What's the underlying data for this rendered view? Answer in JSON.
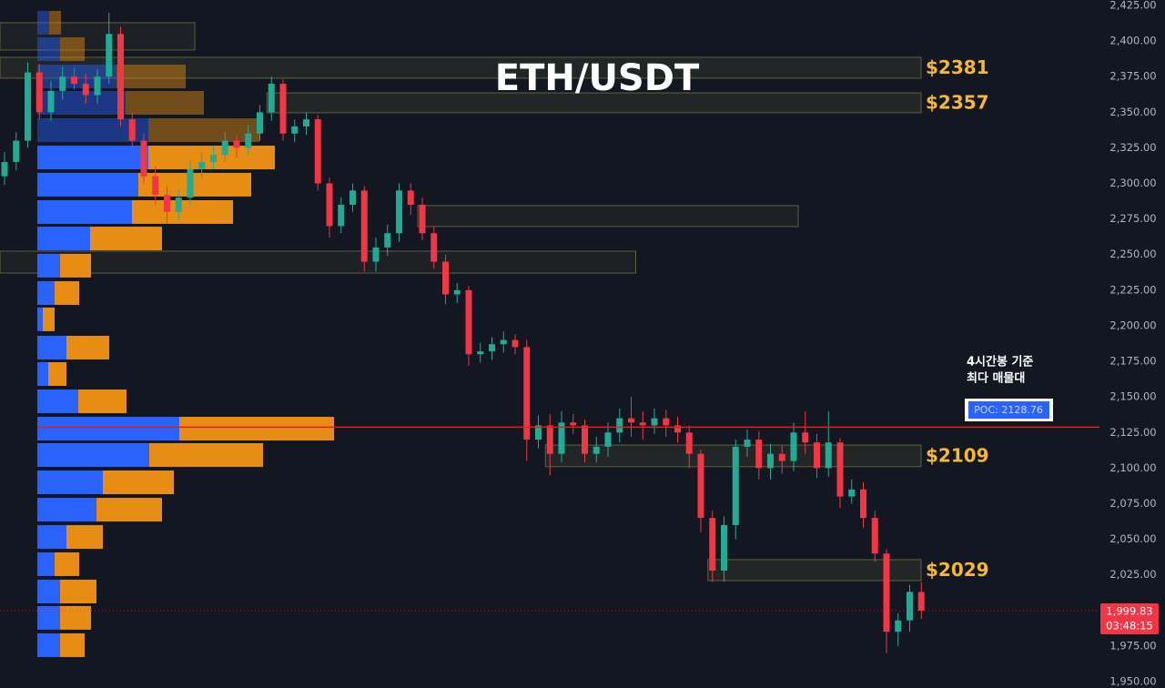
{
  "chart_data": {
    "type": "candlestick",
    "title": "ETH/USDT",
    "colors": {
      "up": "#22ab94",
      "down": "#f23645",
      "buy": "#2962ff",
      "sell": "#e88d14",
      "poc": "#e0201b"
    },
    "grid": true,
    "ylim": [
      1950,
      2425
    ],
    "yticks": [
      {
        "value": 2425,
        "label": "2,425.00"
      },
      {
        "value": 2400,
        "label": "2,400.00"
      },
      {
        "value": 2375,
        "label": "2,375.00"
      },
      {
        "value": 2350,
        "label": "2,350.00"
      },
      {
        "value": 2325,
        "label": "2,325.00"
      },
      {
        "value": 2300,
        "label": "2,300.00"
      },
      {
        "value": 2275,
        "label": "2,275.00"
      },
      {
        "value": 2250,
        "label": "2,250.00"
      },
      {
        "value": 2225,
        "label": "2,225.00"
      },
      {
        "value": 2200,
        "label": "2,200.00"
      },
      {
        "value": 2175,
        "label": "2,175.00"
      },
      {
        "value": 2150,
        "label": "2,150.00"
      },
      {
        "value": 2125,
        "label": "2,125.00"
      },
      {
        "value": 2100,
        "label": "2,100.00"
      },
      {
        "value": 2075,
        "label": "2,075.00"
      },
      {
        "value": 2050,
        "label": "2,050.00"
      },
      {
        "value": 2025,
        "label": "2,025.00"
      },
      {
        "value": 2000,
        "label": "2,000.00"
      },
      {
        "value": 1975,
        "label": "1,975.00"
      },
      {
        "value": 1950,
        "label": "1,950.00"
      }
    ],
    "open": [
      2305,
      2315,
      2330,
      2378,
      2350,
      2365,
      2375,
      2370,
      2362,
      2375,
      2405,
      2345,
      2330,
      2305,
      2292,
      2280,
      2290,
      2310,
      2315,
      2320,
      2330,
      2325,
      2335,
      2350,
      2370,
      2335,
      2340,
      2345,
      2300,
      2270,
      2285,
      2295,
      2245,
      2255,
      2265,
      2295,
      2285,
      2265,
      2245,
      2222,
      2225,
      2180,
      2182,
      2187,
      2190,
      2185,
      2120,
      2130,
      2110,
      2132,
      2130,
      2110,
      2115,
      2125,
      2135,
      2132,
      2130,
      2135,
      2130,
      2125,
      2110,
      2065,
      2028,
      2060,
      2115,
      2120,
      2100,
      2110,
      2105,
      2125,
      2118,
      2100,
      2118,
      2080,
      2085,
      2065,
      2040,
      1985,
      1993,
      2013
    ],
    "high": [
      2322,
      2336,
      2385,
      2384,
      2372,
      2382,
      2381,
      2377,
      2380,
      2420,
      2410,
      2350,
      2335,
      2312,
      2298,
      2296,
      2316,
      2322,
      2326,
      2336,
      2334,
      2341,
      2355,
      2375,
      2373,
      2345,
      2350,
      2348,
      2304,
      2290,
      2300,
      2298,
      2262,
      2271,
      2300,
      2300,
      2290,
      2270,
      2250,
      2230,
      2228,
      2188,
      2192,
      2196,
      2194,
      2190,
      2137,
      2138,
      2140,
      2138,
      2134,
      2122,
      2132,
      2142,
      2150,
      2140,
      2142,
      2141,
      2136,
      2130,
      2113,
      2070,
      2066,
      2120,
      2127,
      2126,
      2117,
      2116,
      2132,
      2140,
      2124,
      2140,
      2121,
      2092,
      2090,
      2070,
      2043,
      1998,
      2018,
      2020
    ],
    "low": [
      2299,
      2309,
      2325,
      2345,
      2344,
      2359,
      2366,
      2356,
      2356,
      2370,
      2340,
      2325,
      2300,
      2285,
      2272,
      2274,
      2284,
      2304,
      2310,
      2315,
      2318,
      2320,
      2330,
      2344,
      2330,
      2329,
      2334,
      2295,
      2262,
      2265,
      2280,
      2238,
      2238,
      2249,
      2259,
      2278,
      2260,
      2240,
      2215,
      2216,
      2172,
      2174,
      2176,
      2181,
      2180,
      2105,
      2114,
      2095,
      2104,
      2124,
      2104,
      2104,
      2108,
      2118,
      2122,
      2120,
      2124,
      2122,
      2118,
      2100,
      2055,
      2020,
      2020,
      2050,
      2108,
      2092,
      2092,
      2096,
      2098,
      2110,
      2093,
      2094,
      2072,
      2075,
      2058,
      2034,
      1970,
      1975,
      1985,
      1994
    ],
    "close": [
      2315,
      2330,
      2378,
      2350,
      2365,
      2375,
      2370,
      2362,
      2375,
      2405,
      2345,
      2330,
      2305,
      2292,
      2280,
      2290,
      2310,
      2315,
      2320,
      2330,
      2325,
      2335,
      2350,
      2370,
      2335,
      2340,
      2345,
      2300,
      2270,
      2285,
      2295,
      2245,
      2255,
      2265,
      2295,
      2285,
      2265,
      2245,
      2222,
      2225,
      2180,
      2182,
      2187,
      2190,
      2185,
      2120,
      2130,
      2110,
      2132,
      2130,
      2110,
      2115,
      2125,
      2135,
      2132,
      2130,
      2135,
      2130,
      2125,
      2110,
      2065,
      2028,
      2060,
      2115,
      2120,
      2100,
      2110,
      2105,
      2125,
      2118,
      2100,
      2118,
      2080,
      2085,
      2065,
      2040,
      1985,
      1993,
      2013,
      1999.83
    ],
    "volume_profile": {
      "price": [
        2412.9,
        2394.3,
        2375.1,
        2356.6,
        2337.4,
        2318.2,
        2299.1,
        2279.9,
        2261.3,
        2242.2,
        2223.0,
        2204.5,
        2184.6,
        2166.1,
        2146.9,
        2127.7,
        2109.2,
        2090.0,
        2070.8,
        2051.6,
        2032.5,
        2013.3,
        1994.8,
        1975.6
      ],
      "buy": [
        13,
        25,
        87,
        97,
        122,
        122,
        111,
        104,
        58,
        25,
        19,
        6,
        32,
        12,
        45,
        156,
        123,
        72,
        65,
        32,
        19,
        25,
        25,
        25
      ],
      "sell": [
        13,
        27,
        76,
        86,
        122,
        139,
        124,
        111,
        79,
        34,
        27,
        13,
        47,
        20,
        53,
        170,
        125,
        78,
        72,
        40,
        27,
        40,
        34,
        27
      ]
    },
    "zones": [
      {
        "top": 2412.9,
        "bottom": 2393.7,
        "from": 0,
        "to": 16
      },
      {
        "top": 2388.6,
        "bottom": 2373.9,
        "from": 0,
        "to": 79,
        "label": "$2381"
      },
      {
        "top": 2363.6,
        "bottom": 2349.6,
        "from": 23,
        "to": 79,
        "label": "$2357"
      },
      {
        "top": 2284.4,
        "bottom": 2269.7,
        "from": 36,
        "to": 68
      },
      {
        "top": 2252.4,
        "bottom": 2237.0,
        "from": 0,
        "to": 54
      },
      {
        "top": 2116.2,
        "bottom": 2101.0,
        "from": 47,
        "to": 79,
        "label": "$2109"
      },
      {
        "top": 2035.7,
        "bottom": 2021.0,
        "from": 61,
        "to": 79,
        "label": "$2029"
      }
    ],
    "poc": {
      "value": 2128.76,
      "label": "POC: 2128.76",
      "note": [
        "4시간봉 기준",
        "최다 매물대"
      ]
    },
    "last_price": {
      "value": 1999.83,
      "label": "1,999.83",
      "countdown": "03:48:15"
    }
  }
}
